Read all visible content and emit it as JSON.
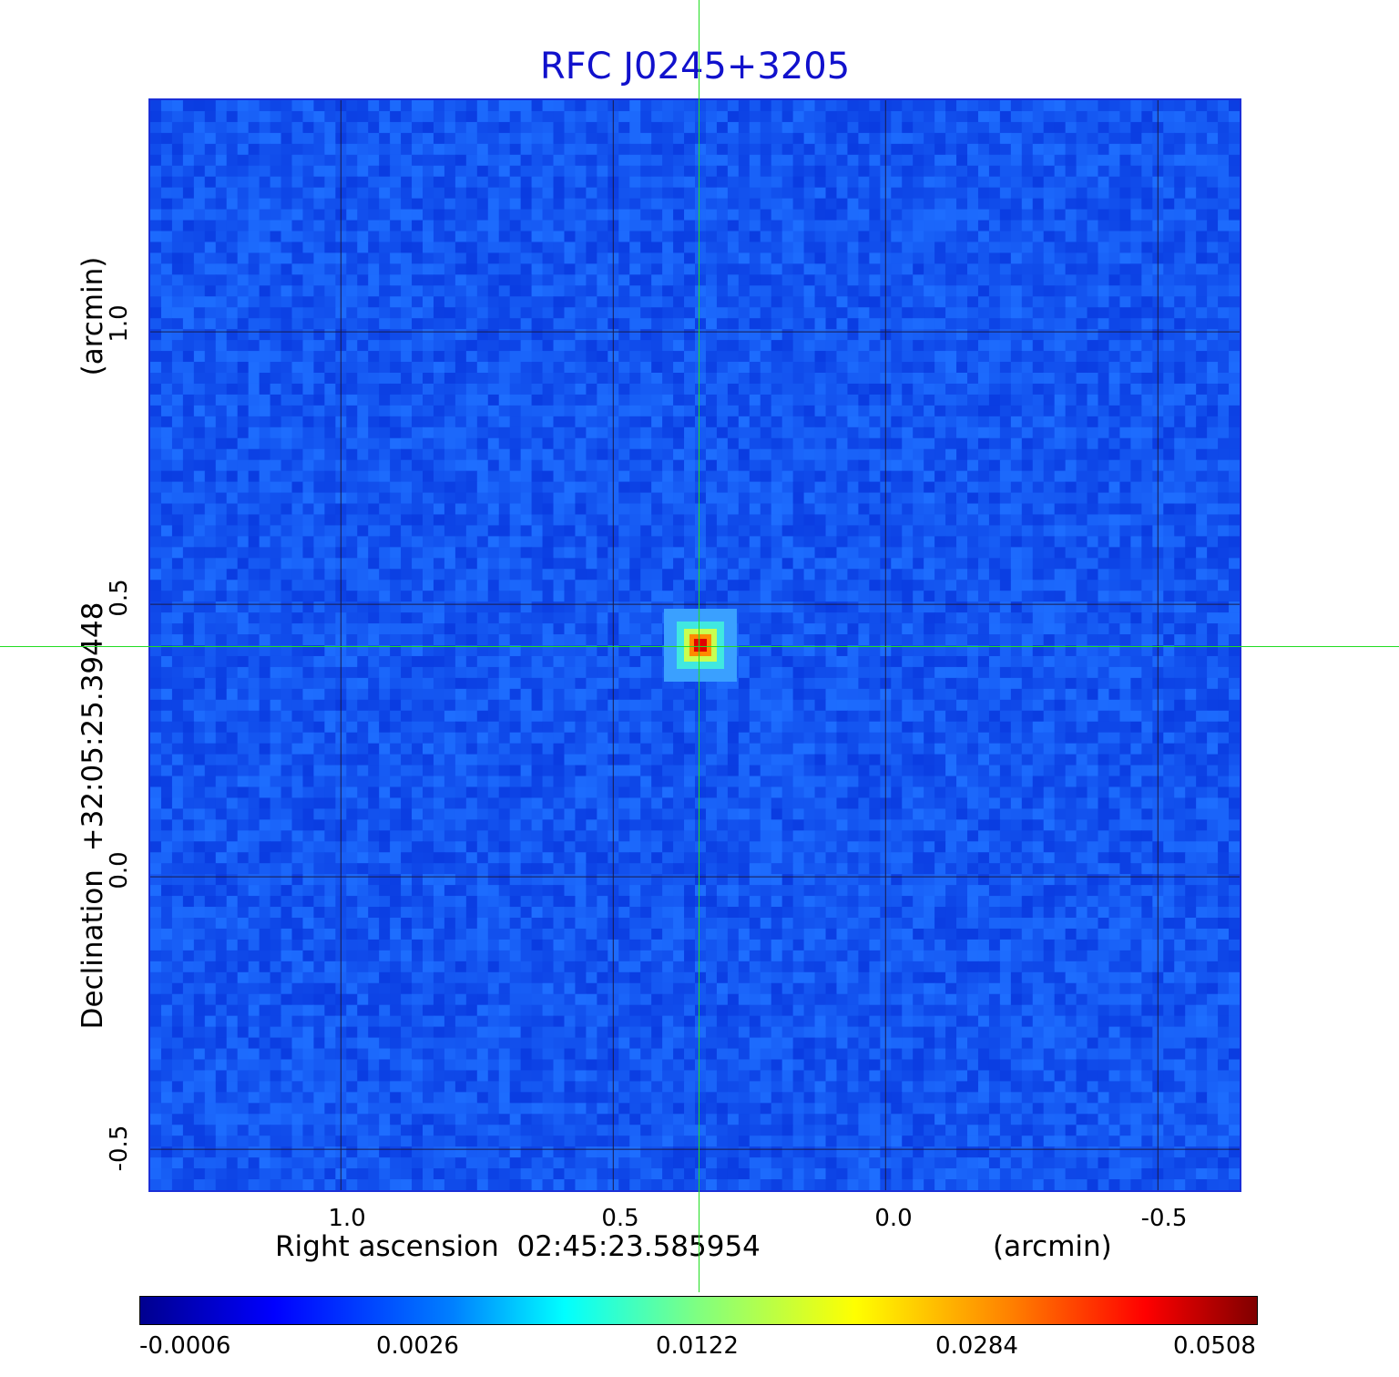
{
  "chart_data": {
    "type": "heatmap",
    "title": "RFC J0245+3205",
    "xlabel": "Right ascension  02:45:23.585954",
    "xunit": "(arcmin)",
    "ylabel": "Declination  +32:05:25.39448",
    "yunit": "(arcmin)",
    "xlim": [
      1.35,
      -0.65
    ],
    "ylim": [
      -0.575,
      1.425
    ],
    "xticks": [
      1.0,
      0.5,
      0.0,
      -0.5
    ],
    "xtick_labels": [
      "1.0",
      "0.5",
      "0.0",
      "-0.5"
    ],
    "yticks": [
      1.0,
      0.5,
      0.0,
      -0.5
    ],
    "ytick_labels": [
      "1.0",
      "0.5",
      "0.0",
      "-0.5"
    ],
    "grid": true,
    "source": {
      "x": 0.34,
      "y": 0.425,
      "peak": 0.0508
    },
    "crosshair": {
      "x": 0.34,
      "y": 0.425
    },
    "colorbar": {
      "position": "bottom",
      "colormap": "jet",
      "ticks": [
        -0.0006,
        0.0026,
        0.0122,
        0.0284,
        0.0508
      ],
      "tick_labels": [
        "-0.0006",
        "0.0026",
        "0.0122",
        "0.0284",
        "0.0508"
      ]
    }
  }
}
